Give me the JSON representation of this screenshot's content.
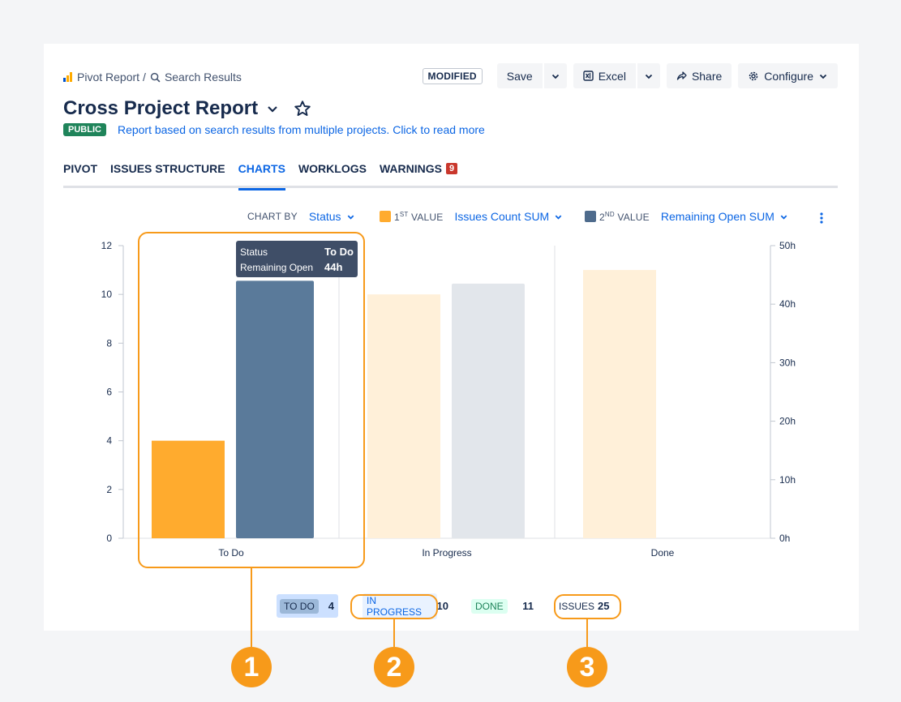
{
  "breadcrumb": {
    "root": "Pivot Report",
    "separator": "/",
    "current": "Search Results"
  },
  "header": {
    "modified_badge": "MODIFIED",
    "save_label": "Save",
    "excel_label": "Excel",
    "share_label": "Share",
    "configure_label": "Configure",
    "title": "Cross Project Report",
    "visibility_badge": "PUBLIC",
    "description": "Report based on search results from multiple projects. Click to read more"
  },
  "tabs": [
    {
      "label": "PIVOT"
    },
    {
      "label": "ISSUES STRUCTURE"
    },
    {
      "label": "CHARTS",
      "active": true
    },
    {
      "label": "WORKLOGS"
    },
    {
      "label": "WARNINGS",
      "count": "9"
    }
  ],
  "chart_controls": {
    "chart_by_label": "CHART BY",
    "chart_by_value": "Status",
    "first_value_label_pre": "1",
    "first_value_label_sup": "ST",
    "first_value_label_post": " VALUE",
    "first_value": "Issues Count SUM",
    "second_value_label_pre": "2",
    "second_value_label_sup": "ND",
    "second_value_label_post": " VALUE",
    "second_value": "Remaining Open SUM"
  },
  "chart_data": {
    "type": "bar",
    "categories": [
      "To Do",
      "In Progress",
      "Done"
    ],
    "series": [
      {
        "name": "Issues Count SUM",
        "axis": "left",
        "values": [
          4,
          10,
          11
        ],
        "color": "#ffab2e"
      },
      {
        "name": "Remaining Open SUM",
        "axis": "right",
        "values": [
          44,
          43.5,
          0
        ],
        "color": "#5a7a9a"
      }
    ],
    "highlighted_category": "To Do",
    "dimmed_colors": {
      "first": "#fff0d9",
      "second": "#e2e6eb"
    },
    "y_left": {
      "lim": [
        0,
        12
      ],
      "ticks": [
        "0",
        "2",
        "4",
        "6",
        "8",
        "10",
        "12"
      ]
    },
    "y_right": {
      "lim": [
        0,
        50
      ],
      "unit": "h",
      "ticks": [
        "0h",
        "10h",
        "20h",
        "30h",
        "40h",
        "50h"
      ]
    },
    "tooltip": {
      "row1_label": "Status",
      "row1_value": "To Do",
      "row2_label": "Remaining Open",
      "row2_value": "44h"
    }
  },
  "legend": [
    {
      "label": "TO DO",
      "count": "4"
    },
    {
      "label": "IN PROGRESS",
      "count": "10"
    },
    {
      "label": "DONE",
      "count": "11"
    },
    {
      "label": "ISSUES",
      "count": "25"
    }
  ],
  "callouts": {
    "marker1": "1",
    "marker2": "2",
    "marker3": "3"
  },
  "colors": {
    "accent": "#0c66e4",
    "callout": "#f79a1a",
    "warning": "#c9372c",
    "public": "#1f845a"
  }
}
